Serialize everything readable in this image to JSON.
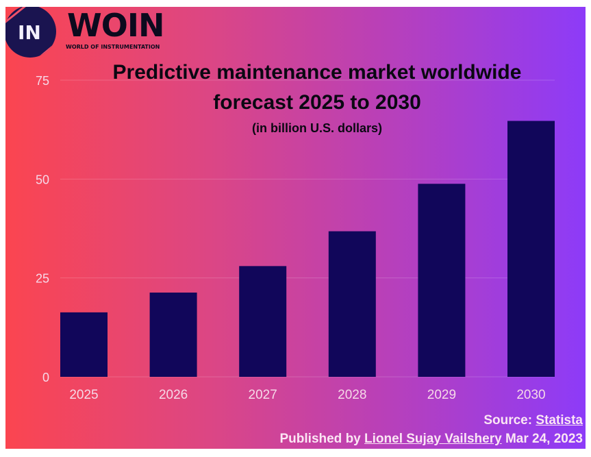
{
  "logo": {
    "mark": "IN",
    "name": "WOIN",
    "tagline": "WORLD OF INSTRUMENTATION"
  },
  "colors": {
    "bar": "#11065a",
    "gradient_left": "#fb4550",
    "gradient_right": "#8d3bf8",
    "tick_text": "#f6d9e8"
  },
  "chart_data": {
    "type": "bar",
    "title": "Predictive maintenance market worldwide forecast 2025 to 2030",
    "title_line1": "Predictive maintenance market worldwide",
    "title_line2": "forecast 2025 to 2030",
    "subtitle": "(in billion U.S. dollars)",
    "categories": [
      "2025",
      "2026",
      "2027",
      "2028",
      "2029",
      "2030"
    ],
    "values": [
      16.3,
      21.3,
      28.0,
      36.8,
      48.8,
      64.7
    ],
    "ylim": [
      0,
      75
    ],
    "yticks": [
      "0",
      "25",
      "50",
      "75"
    ],
    "grid": true,
    "xlabel": "",
    "ylabel": ""
  },
  "footer": {
    "source_label": "Source:",
    "source_link": "Statista",
    "published_label": "Published by",
    "author": "Lionel Sujay Vailshery",
    "date": "Mar 24, 2023"
  }
}
